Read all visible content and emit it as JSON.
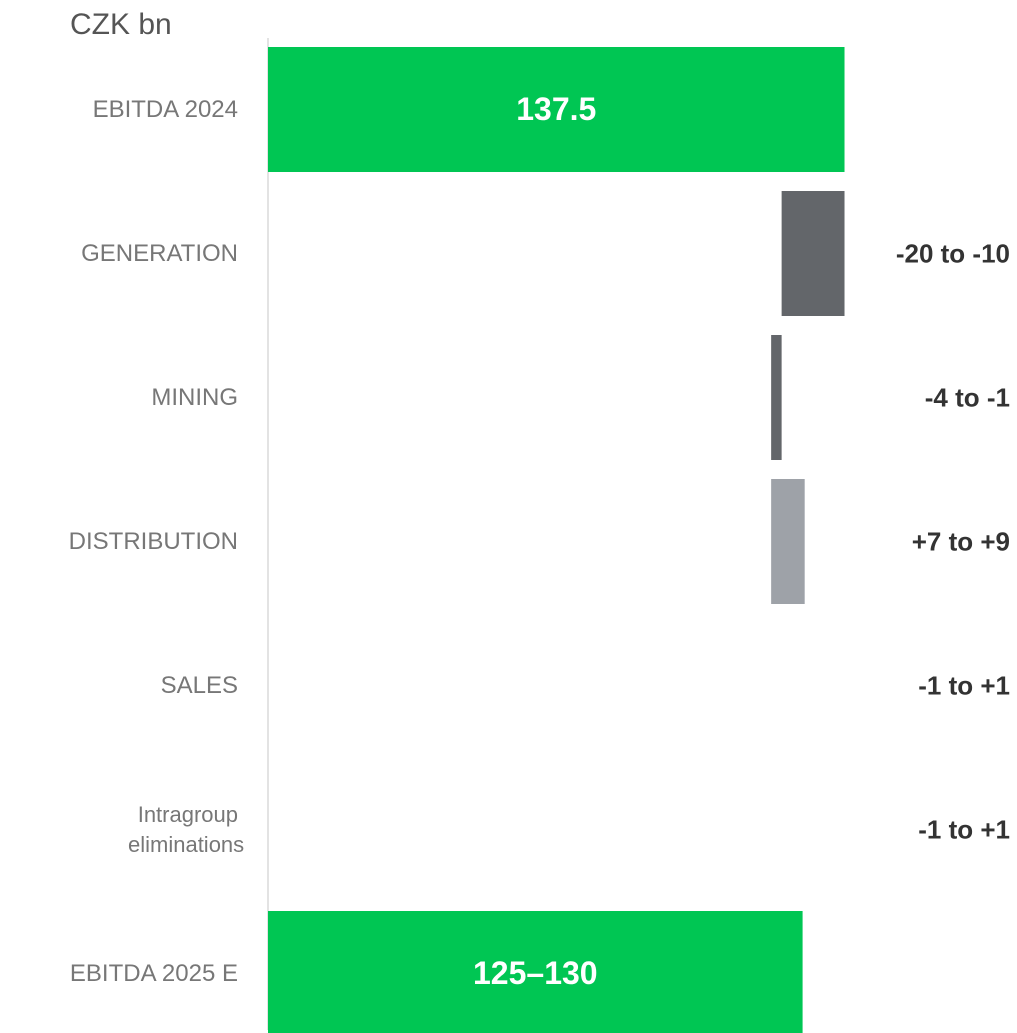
{
  "chart_data": {
    "type": "waterfall",
    "unit_label": "CZK bn",
    "categories": [
      "EBITDA 2024",
      "GENERATION",
      "MINING",
      "DISTRIBUTION",
      "SALES",
      "Intragroup eliminations",
      "EBITDA 2025 E"
    ],
    "values": [
      137.5,
      -15,
      -2.5,
      8,
      0,
      0,
      127.5
    ],
    "value_labels": [
      "137.5",
      "-20 to -10",
      "-4 to -1",
      "+7 to +9",
      "-1 to +1",
      "-1 to +1",
      "125–130"
    ],
    "totals": [
      true,
      false,
      false,
      false,
      false,
      false,
      true
    ],
    "colors": {
      "total": "#00c653",
      "decrease": "#63666a",
      "increase": "#9ea2a8"
    },
    "xlim": [
      0,
      140
    ]
  }
}
